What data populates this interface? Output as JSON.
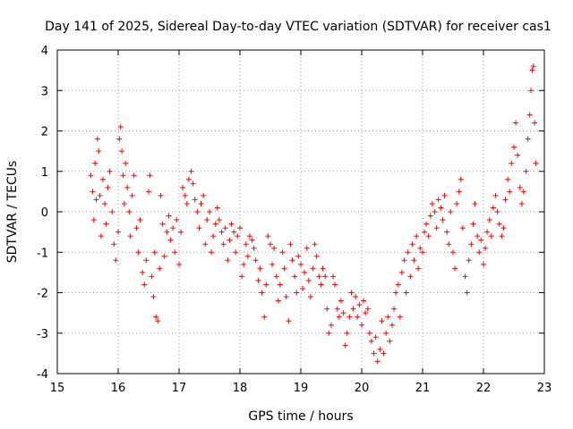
{
  "chart_data": {
    "type": "scatter",
    "title": "Day 141 of 2025, Sidereal Day-to-day VTEC variation (SDTVAR) for receiver cas1",
    "xlabel": "GPS time / hours",
    "ylabel": "SDTVAR / TECUs",
    "xlim": [
      15,
      23
    ],
    "ylim": [
      -4,
      4
    ],
    "xticks": [
      "15",
      "16",
      "17",
      "18",
      "19",
      "20",
      "21",
      "22",
      "23"
    ],
    "yticks": [
      "-4",
      "-3",
      "-2",
      "-1",
      "0",
      "1",
      "2",
      "3",
      "4"
    ],
    "grid": true,
    "marker": "+",
    "color": "#ff0000",
    "series": [
      {
        "name": "SDTVAR",
        "points": [
          [
            15.55,
            0.9
          ],
          [
            15.58,
            0.5
          ],
          [
            15.6,
            -0.2
          ],
          [
            15.62,
            1.2
          ],
          [
            15.64,
            0.3
          ],
          [
            15.66,
            1.8
          ],
          [
            15.68,
            1.5
          ],
          [
            15.7,
            0.4
          ],
          [
            15.72,
            -0.6
          ],
          [
            15.75,
            0.8
          ],
          [
            15.78,
            0.2
          ],
          [
            15.8,
            -0.3
          ],
          [
            15.83,
            0.6
          ],
          [
            15.86,
            1.0
          ],
          [
            15.9,
            0.0
          ],
          [
            15.93,
            -0.8
          ],
          [
            15.96,
            -1.2
          ],
          [
            16.0,
            -0.5
          ],
          [
            16.02,
            1.8
          ],
          [
            16.04,
            2.1
          ],
          [
            16.06,
            1.5
          ],
          [
            16.08,
            0.9
          ],
          [
            16.1,
            0.2
          ],
          [
            16.12,
            1.2
          ],
          [
            16.15,
            0.6
          ],
          [
            16.18,
            0.0
          ],
          [
            16.2,
            -0.6
          ],
          [
            16.23,
            0.4
          ],
          [
            16.26,
            0.9
          ],
          [
            16.3,
            -0.4
          ],
          [
            16.33,
            -1.0
          ],
          [
            16.36,
            -0.2
          ],
          [
            16.4,
            -1.5
          ],
          [
            16.43,
            -1.8
          ],
          [
            16.46,
            -1.2
          ],
          [
            16.5,
            0.5
          ],
          [
            16.52,
            0.9
          ],
          [
            16.55,
            -1.6
          ],
          [
            16.58,
            -2.1
          ],
          [
            16.6,
            -1.0
          ],
          [
            16.62,
            -2.6
          ],
          [
            16.65,
            -2.7
          ],
          [
            16.68,
            -1.4
          ],
          [
            16.7,
            0.4
          ],
          [
            16.73,
            -0.3
          ],
          [
            16.76,
            -1.1
          ],
          [
            16.8,
            -0.5
          ],
          [
            16.83,
            -0.1
          ],
          [
            16.86,
            -0.7
          ],
          [
            16.9,
            -0.4
          ],
          [
            16.93,
            -1.0
          ],
          [
            16.96,
            -0.2
          ],
          [
            17.0,
            -1.3
          ],
          [
            17.03,
            -0.5
          ],
          [
            17.06,
            0.6
          ],
          [
            17.1,
            0.4
          ],
          [
            17.13,
            0.2
          ],
          [
            17.16,
            0.8
          ],
          [
            17.2,
            1.0
          ],
          [
            17.23,
            0.7
          ],
          [
            17.26,
            0.3
          ],
          [
            17.3,
            0.0
          ],
          [
            17.33,
            -0.4
          ],
          [
            17.36,
            0.2
          ],
          [
            17.4,
            0.4
          ],
          [
            17.43,
            -0.8
          ],
          [
            17.46,
            -0.2
          ],
          [
            17.5,
            0.0
          ],
          [
            17.53,
            -1.0
          ],
          [
            17.56,
            -0.6
          ],
          [
            17.6,
            -0.3
          ],
          [
            17.63,
            0.1
          ],
          [
            17.66,
            -0.2
          ],
          [
            17.7,
            -0.5
          ],
          [
            17.73,
            -0.8
          ],
          [
            17.76,
            -0.4
          ],
          [
            17.8,
            -1.2
          ],
          [
            17.83,
            -0.7
          ],
          [
            17.86,
            -0.3
          ],
          [
            17.9,
            -0.5
          ],
          [
            17.93,
            -1.0
          ],
          [
            17.96,
            -0.6
          ],
          [
            18.0,
            -0.4
          ],
          [
            18.03,
            -1.6
          ],
          [
            18.06,
            -1.3
          ],
          [
            18.1,
            -0.8
          ],
          [
            18.13,
            -1.1
          ],
          [
            18.16,
            -0.6
          ],
          [
            18.2,
            -0.7
          ],
          [
            18.23,
            -0.9
          ],
          [
            18.26,
            -1.2
          ],
          [
            18.3,
            -1.7
          ],
          [
            18.33,
            -1.4
          ],
          [
            18.36,
            -2.0
          ],
          [
            18.4,
            -2.6
          ],
          [
            18.43,
            -1.8
          ],
          [
            18.46,
            -0.6
          ],
          [
            18.5,
            -0.8
          ],
          [
            18.53,
            -1.3
          ],
          [
            18.56,
            -0.9
          ],
          [
            18.6,
            -1.6
          ],
          [
            18.63,
            -2.2
          ],
          [
            18.66,
            -1.8
          ],
          [
            18.7,
            -1.0
          ],
          [
            18.73,
            -1.4
          ],
          [
            18.76,
            -2.1
          ],
          [
            18.8,
            -2.7
          ],
          [
            18.83,
            -0.8
          ],
          [
            18.86,
            -1.2
          ],
          [
            18.9,
            -1.6
          ],
          [
            18.93,
            -2.0
          ],
          [
            18.96,
            -1.1
          ],
          [
            19.0,
            -1.3
          ],
          [
            19.03,
            -1.9
          ],
          [
            19.06,
            -1.5
          ],
          [
            19.1,
            -0.9
          ],
          [
            19.13,
            -1.7
          ],
          [
            19.16,
            -2.1
          ],
          [
            19.2,
            -1.4
          ],
          [
            19.23,
            -0.8
          ],
          [
            19.26,
            -1.1
          ],
          [
            19.3,
            -1.6
          ],
          [
            19.33,
            -1.8
          ],
          [
            19.36,
            -1.4
          ],
          [
            19.4,
            -1.6
          ],
          [
            19.43,
            -2.4
          ],
          [
            19.46,
            -3.0
          ],
          [
            19.5,
            -2.8
          ],
          [
            19.53,
            -1.6
          ],
          [
            19.56,
            -1.8
          ],
          [
            19.6,
            -2.4
          ],
          [
            19.63,
            -2.6
          ],
          [
            19.66,
            -2.2
          ],
          [
            19.7,
            -2.5
          ],
          [
            19.73,
            -3.3
          ],
          [
            19.76,
            -3.0
          ],
          [
            19.8,
            -2.6
          ],
          [
            19.83,
            -2.0
          ],
          [
            19.86,
            -2.4
          ],
          [
            19.9,
            -2.1
          ],
          [
            19.93,
            -2.6
          ],
          [
            19.96,
            -2.3
          ],
          [
            20.0,
            -2.8
          ],
          [
            20.03,
            -2.2
          ],
          [
            20.06,
            -2.5
          ],
          [
            20.1,
            -2.4
          ],
          [
            20.13,
            -3.0
          ],
          [
            20.16,
            -3.2
          ],
          [
            20.2,
            -3.5
          ],
          [
            20.23,
            -3.1
          ],
          [
            20.26,
            -3.7
          ],
          [
            20.3,
            -3.4
          ],
          [
            20.33,
            -2.7
          ],
          [
            20.36,
            -3.5
          ],
          [
            20.4,
            -3.0
          ],
          [
            20.43,
            -2.6
          ],
          [
            20.46,
            -3.2
          ],
          [
            20.5,
            -2.8
          ],
          [
            20.53,
            -2.4
          ],
          [
            20.56,
            -2.0
          ],
          [
            20.6,
            -1.8
          ],
          [
            20.63,
            -2.6
          ],
          [
            20.66,
            -1.5
          ],
          [
            20.7,
            -1.2
          ],
          [
            20.73,
            -2.0
          ],
          [
            20.76,
            -1.0
          ],
          [
            20.8,
            -1.6
          ],
          [
            20.83,
            -0.8
          ],
          [
            20.86,
            -1.2
          ],
          [
            20.9,
            -0.6
          ],
          [
            20.93,
            -1.4
          ],
          [
            20.96,
            -0.9
          ],
          [
            21.0,
            -1.0
          ],
          [
            21.03,
            -0.5
          ],
          [
            21.06,
            -0.3
          ],
          [
            21.1,
            -0.6
          ],
          [
            21.13,
            -0.1
          ],
          [
            21.16,
            0.2
          ],
          [
            21.2,
            0.0
          ],
          [
            21.23,
            -0.4
          ],
          [
            21.26,
            0.3
          ],
          [
            21.3,
            0.1
          ],
          [
            21.33,
            -0.2
          ],
          [
            21.36,
            0.4
          ],
          [
            21.4,
            -0.5
          ],
          [
            21.43,
            -0.8
          ],
          [
            21.46,
            0.0
          ],
          [
            21.5,
            -1.0
          ],
          [
            21.53,
            -1.4
          ],
          [
            21.56,
            0.2
          ],
          [
            21.6,
            0.5
          ],
          [
            21.63,
            0.8
          ],
          [
            21.66,
            -0.4
          ],
          [
            21.7,
            -1.6
          ],
          [
            21.73,
            -2.0
          ],
          [
            21.76,
            -1.2
          ],
          [
            21.8,
            -0.8
          ],
          [
            21.83,
            -0.3
          ],
          [
            21.86,
            0.2
          ],
          [
            21.9,
            -0.6
          ],
          [
            21.93,
            -1.0
          ],
          [
            21.96,
            -0.7
          ],
          [
            22.0,
            -1.3
          ],
          [
            22.03,
            -0.9
          ],
          [
            22.06,
            -0.5
          ],
          [
            22.1,
            -0.2
          ],
          [
            22.13,
            -0.6
          ],
          [
            22.16,
            0.1
          ],
          [
            22.2,
            0.4
          ],
          [
            22.23,
            0.0
          ],
          [
            22.26,
            -0.3
          ],
          [
            22.3,
            -0.6
          ],
          [
            22.33,
            -0.4
          ],
          [
            22.36,
            0.3
          ],
          [
            22.4,
            0.8
          ],
          [
            22.43,
            0.5
          ],
          [
            22.46,
            1.2
          ],
          [
            22.5,
            1.6
          ],
          [
            22.53,
            2.2
          ],
          [
            22.56,
            1.4
          ],
          [
            22.6,
            0.6
          ],
          [
            22.63,
            0.2
          ],
          [
            22.66,
            0.5
          ],
          [
            22.7,
            1.0
          ],
          [
            22.73,
            1.8
          ],
          [
            22.76,
            2.4
          ],
          [
            22.78,
            3.0
          ],
          [
            22.8,
            3.5
          ],
          [
            22.82,
            3.6
          ],
          [
            22.84,
            2.2
          ],
          [
            22.86,
            1.2
          ]
        ]
      }
    ]
  }
}
